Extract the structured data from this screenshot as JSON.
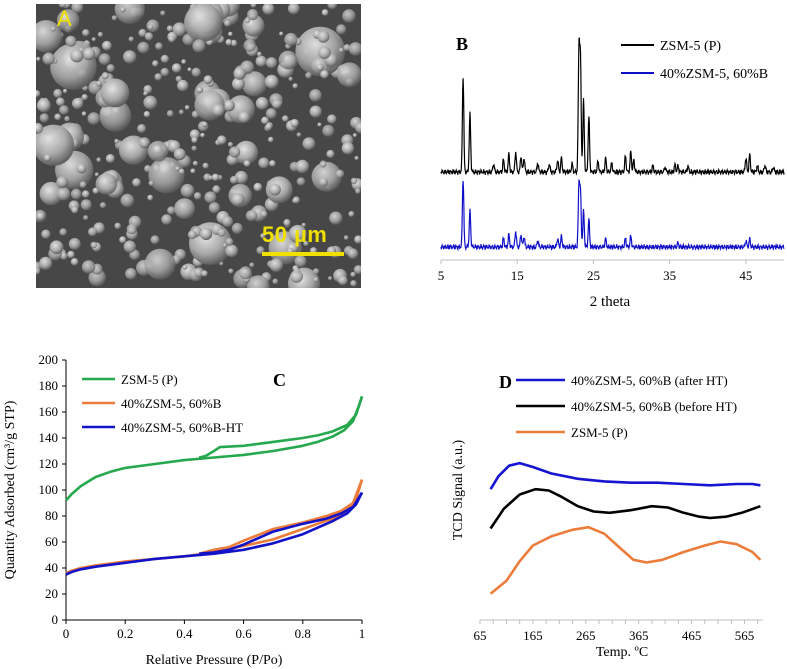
{
  "panel_a": {
    "letter": "A",
    "scale_bar_label": "50 µm"
  },
  "chart_data": [
    {
      "panel": "B",
      "type": "line",
      "xlabel": "2 theta",
      "ylabel": "",
      "xlim": [
        5,
        50
      ],
      "x_ticks": [
        5,
        15,
        25,
        35,
        45
      ],
      "legend": [
        "ZSM-5 (P)",
        "40%ZSM-5, 60%B"
      ],
      "colors": [
        "#000000",
        "#1010c8"
      ],
      "series": [
        {
          "name": "ZSM-5 (P)",
          "baseline": 0,
          "peaks": [
            [
              7.9,
              95
            ],
            [
              8.8,
              58
            ],
            [
              11.9,
              8
            ],
            [
              13.2,
              12
            ],
            [
              13.9,
              18
            ],
            [
              14.8,
              20
            ],
            [
              15.5,
              16
            ],
            [
              15.9,
              14
            ],
            [
              17.7,
              9
            ],
            [
              19.2,
              8
            ],
            [
              20.3,
              12
            ],
            [
              20.8,
              14
            ],
            [
              22.2,
              8
            ],
            [
              23.1,
              124
            ],
            [
              23.3,
              108
            ],
            [
              23.7,
              72
            ],
            [
              24.4,
              55
            ],
            [
              25.6,
              11
            ],
            [
              26.6,
              14
            ],
            [
              27.4,
              9
            ],
            [
              29.2,
              16
            ],
            [
              29.9,
              20
            ],
            [
              30.3,
              12
            ],
            [
              32.8,
              6
            ],
            [
              34.4,
              5
            ],
            [
              35.7,
              7
            ],
            [
              36.1,
              6
            ],
            [
              37.4,
              6
            ],
            [
              45.0,
              14
            ],
            [
              45.5,
              17
            ],
            [
              46.5,
              6
            ],
            [
              47.5,
              7
            ],
            [
              48.6,
              5
            ]
          ]
        },
        {
          "name": "40%ZSM-5, 60%B",
          "baseline": 0,
          "peaks": [
            [
              7.9,
              65
            ],
            [
              8.8,
              35
            ],
            [
              13.2,
              8
            ],
            [
              13.9,
              12
            ],
            [
              14.8,
              15
            ],
            [
              15.5,
              12
            ],
            [
              15.9,
              10
            ],
            [
              17.7,
              6
            ],
            [
              20.3,
              8
            ],
            [
              20.8,
              10
            ],
            [
              23.1,
              60
            ],
            [
              23.3,
              50
            ],
            [
              23.7,
              35
            ],
            [
              24.4,
              26
            ],
            [
              26.6,
              8
            ],
            [
              29.2,
              8
            ],
            [
              29.9,
              10
            ],
            [
              36.1,
              4
            ],
            [
              45.0,
              6
            ],
            [
              45.5,
              7
            ]
          ]
        }
      ]
    },
    {
      "panel": "C",
      "type": "line",
      "xlabel": "Relative Pressure (P/Po)",
      "ylabel": "Quantity Adsorbed (cm³/g STP)",
      "xlim": [
        0,
        1
      ],
      "ylim": [
        0,
        200
      ],
      "x_ticks": [
        0,
        0.2,
        0.4,
        0.6,
        0.8,
        1
      ],
      "y_ticks": [
        0,
        20,
        40,
        60,
        80,
        100,
        120,
        140,
        160,
        180,
        200
      ],
      "colors": [
        "#26a84e",
        "#ec7c3a",
        "#1212c8"
      ],
      "series": [
        {
          "name": "ZSM-5 (P)",
          "adsorption": [
            [
              0,
              92
            ],
            [
              0.02,
              97
            ],
            [
              0.05,
              103
            ],
            [
              0.1,
              110
            ],
            [
              0.15,
              114
            ],
            [
              0.2,
              117
            ],
            [
              0.3,
              120
            ],
            [
              0.4,
              123
            ],
            [
              0.5,
              125
            ],
            [
              0.6,
              127
            ],
            [
              0.7,
              130
            ],
            [
              0.8,
              134
            ],
            [
              0.85,
              137
            ],
            [
              0.9,
              141
            ],
            [
              0.94,
              146
            ],
            [
              0.97,
              153
            ],
            [
              0.99,
              165
            ],
            [
              1.0,
              172
            ]
          ],
          "desorption": [
            [
              1.0,
              172
            ],
            [
              0.98,
              158
            ],
            [
              0.95,
              150
            ],
            [
              0.9,
              145
            ],
            [
              0.85,
              142
            ],
            [
              0.8,
              140
            ],
            [
              0.7,
              137
            ],
            [
              0.6,
              134
            ],
            [
              0.52,
              133
            ],
            [
              0.5,
              130
            ],
            [
              0.47,
              126
            ],
            [
              0.45,
              125
            ]
          ]
        },
        {
          "name": "40%ZSM-5, 60%B",
          "adsorption": [
            [
              0,
              36
            ],
            [
              0.02,
              38
            ],
            [
              0.05,
              40
            ],
            [
              0.1,
              42
            ],
            [
              0.2,
              45
            ],
            [
              0.3,
              47
            ],
            [
              0.4,
              49
            ],
            [
              0.5,
              52
            ],
            [
              0.6,
              57
            ],
            [
              0.7,
              62
            ],
            [
              0.8,
              70
            ],
            [
              0.85,
              74
            ],
            [
              0.9,
              78
            ],
            [
              0.95,
              84
            ],
            [
              0.98,
              93
            ],
            [
              1.0,
              108
            ]
          ],
          "desorption": [
            [
              1.0,
              108
            ],
            [
              0.97,
              90
            ],
            [
              0.93,
              84
            ],
            [
              0.88,
              80
            ],
            [
              0.8,
              75
            ],
            [
              0.7,
              70
            ],
            [
              0.6,
              61
            ],
            [
              0.55,
              56
            ],
            [
              0.5,
              54
            ],
            [
              0.45,
              51
            ]
          ]
        },
        {
          "name": "40%ZSM-5, 60%B-HT",
          "adsorption": [
            [
              0,
              35
            ],
            [
              0.02,
              37
            ],
            [
              0.05,
              39
            ],
            [
              0.1,
              41
            ],
            [
              0.2,
              44
            ],
            [
              0.3,
              47
            ],
            [
              0.4,
              49
            ],
            [
              0.5,
              51
            ],
            [
              0.6,
              54
            ],
            [
              0.7,
              59
            ],
            [
              0.8,
              66
            ],
            [
              0.85,
              71
            ],
            [
              0.9,
              76
            ],
            [
              0.95,
              82
            ],
            [
              0.98,
              89
            ],
            [
              1.0,
              98
            ]
          ],
          "desorption": [
            [
              1.0,
              98
            ],
            [
              0.97,
              87
            ],
            [
              0.93,
              82
            ],
            [
              0.88,
              78
            ],
            [
              0.8,
              74
            ],
            [
              0.7,
              68
            ],
            [
              0.6,
              58
            ],
            [
              0.55,
              54
            ],
            [
              0.5,
              52
            ],
            [
              0.45,
              51
            ]
          ]
        }
      ]
    },
    {
      "panel": "D",
      "type": "line",
      "xlabel": "Temp. ºC",
      "ylabel": "TCD Signal (a.u.)",
      "xlim": [
        65,
        600
      ],
      "x_ticks": [
        65,
        165,
        265,
        365,
        465,
        565
      ],
      "y_ticks": [],
      "colors": [
        "#1515d2",
        "#000000",
        "#ec7c3a"
      ],
      "series": [
        {
          "name": "40%ZSM-5, 60%B (after HT)",
          "points": [
            [
              85,
              100
            ],
            [
              100,
              110
            ],
            [
              120,
              118
            ],
            [
              140,
              120
            ],
            [
              165,
              117
            ],
            [
              200,
              112
            ],
            [
              250,
              108
            ],
            [
              300,
              106
            ],
            [
              350,
              105
            ],
            [
              400,
              105
            ],
            [
              450,
              104
            ],
            [
              500,
              103
            ],
            [
              550,
              104
            ],
            [
              580,
              104
            ],
            [
              595,
              103
            ]
          ]
        },
        {
          "name": "40%ZSM-5, 60%B (before HT)",
          "points": [
            [
              85,
              70
            ],
            [
              110,
              85
            ],
            [
              140,
              96
            ],
            [
              170,
              100
            ],
            [
              195,
              99
            ],
            [
              220,
              94
            ],
            [
              250,
              87
            ],
            [
              280,
              83
            ],
            [
              310,
              82
            ],
            [
              350,
              84
            ],
            [
              390,
              87
            ],
            [
              420,
              86
            ],
            [
              450,
              82
            ],
            [
              480,
              79
            ],
            [
              500,
              78
            ],
            [
              530,
              79
            ],
            [
              560,
              82
            ],
            [
              595,
              87
            ]
          ]
        },
        {
          "name": "ZSM-5 (P)",
          "points": [
            [
              85,
              20
            ],
            [
              115,
              30
            ],
            [
              140,
              45
            ],
            [
              165,
              57
            ],
            [
              200,
              64
            ],
            [
              240,
              69
            ],
            [
              270,
              71
            ],
            [
              300,
              66
            ],
            [
              330,
              55
            ],
            [
              355,
              46
            ],
            [
              380,
              44
            ],
            [
              410,
              46
            ],
            [
              450,
              52
            ],
            [
              490,
              57
            ],
            [
              520,
              60
            ],
            [
              550,
              58
            ],
            [
              580,
              52
            ],
            [
              595,
              46
            ]
          ]
        }
      ]
    }
  ]
}
